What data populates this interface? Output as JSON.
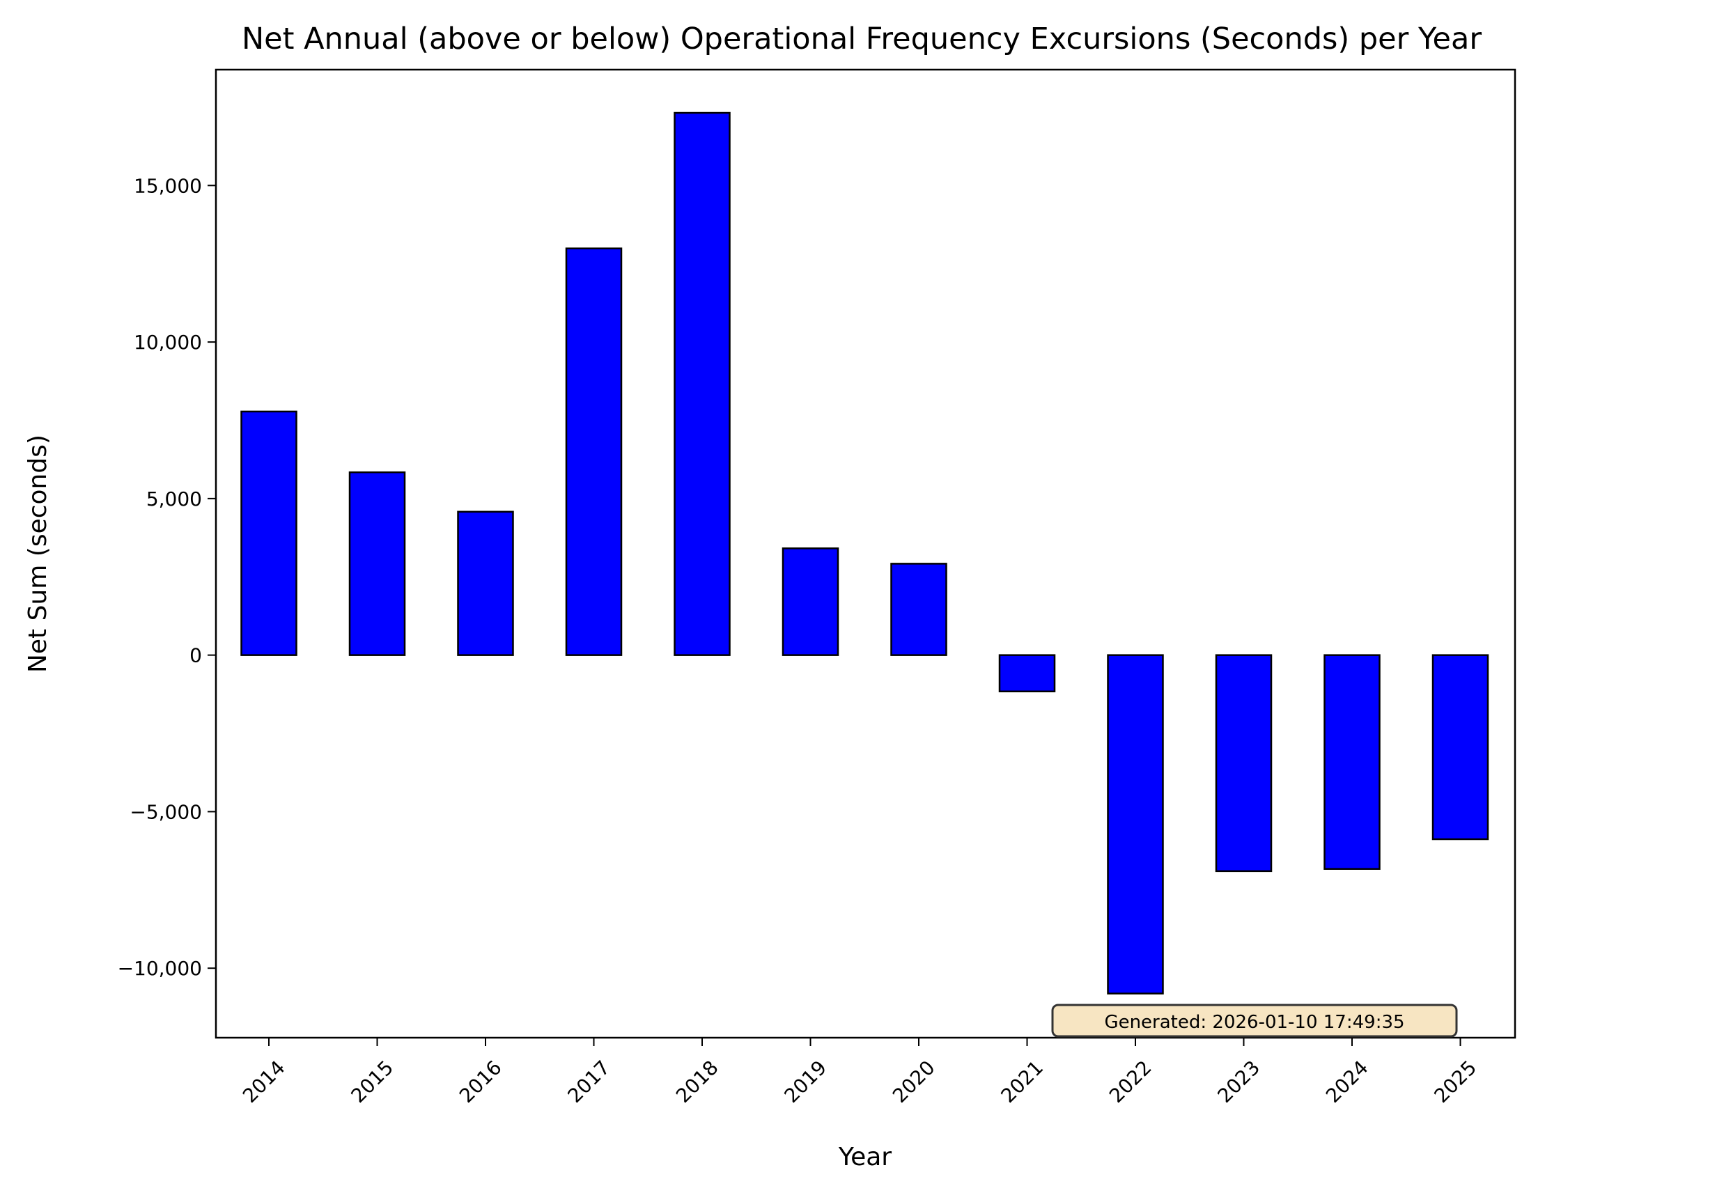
{
  "chart_data": {
    "type": "bar",
    "title": "Net Annual (above or below) Operational Frequency Excursions (Seconds) per Year",
    "xlabel": "Year",
    "ylabel": "Net Sum (seconds)",
    "categories": [
      "2014",
      "2015",
      "2016",
      "2017",
      "2018",
      "2019",
      "2020",
      "2021",
      "2022",
      "2023",
      "2024",
      "2025"
    ],
    "values": [
      7780,
      5840,
      4580,
      12990,
      17320,
      3410,
      2920,
      -1160,
      -10810,
      -6900,
      -6830,
      -5880
    ],
    "ylim": [
      -12220,
      18700
    ],
    "yticks": [
      -10000,
      -5000,
      0,
      5000,
      10000,
      15000
    ],
    "ytick_labels": [
      "−10,000",
      "−5,000",
      "0",
      "5,000",
      "10,000",
      "15,000"
    ],
    "grid": false,
    "bar_color": "#0000ff",
    "edge_color": "#000000",
    "annotation": "Generated: 2026-01-10 17:49:35",
    "annotation_bg": "#f5deb3"
  }
}
